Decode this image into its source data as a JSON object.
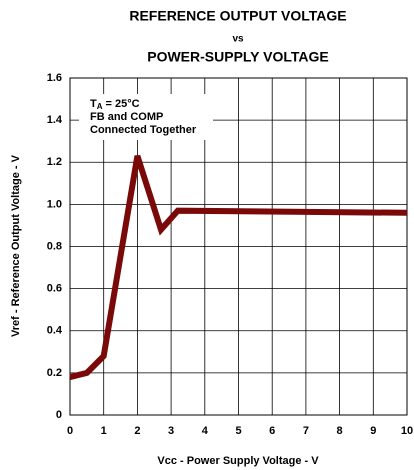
{
  "chart_data": {
    "type": "line",
    "title": "REFERENCE OUTPUT VOLTAGE",
    "title_vs": "vs",
    "subtitle": "POWER-SUPPLY VOLTAGE",
    "x_label": "Vcc - Power Supply Voltage - V",
    "y_label": "Vref - Reference Output Voltage - V",
    "annotation": {
      "temp": [
        "T",
        "A",
        "= 25°C"
      ],
      "lines": [
        "FB and COMP",
        "Connected Together"
      ]
    },
    "series": [
      {
        "name": "Vref",
        "color": "#7a0a0a",
        "x": [
          0,
          0.5,
          1,
          2,
          2.7,
          3.2,
          10
        ],
        "values": [
          0.18,
          0.2,
          0.28,
          1.23,
          0.88,
          0.97,
          0.96
        ]
      }
    ],
    "xlim": [
      0,
      10
    ],
    "xticks": [
      0,
      1,
      2,
      3,
      4,
      5,
      6,
      7,
      8,
      9,
      10
    ],
    "ylim": [
      0,
      1.6
    ],
    "yticks": [
      0,
      0.2,
      0.4,
      0.6,
      0.8,
      {
        "value": 1,
        "label": "1.0"
      },
      1.2,
      1.4,
      1.6
    ],
    "grid": true
  }
}
